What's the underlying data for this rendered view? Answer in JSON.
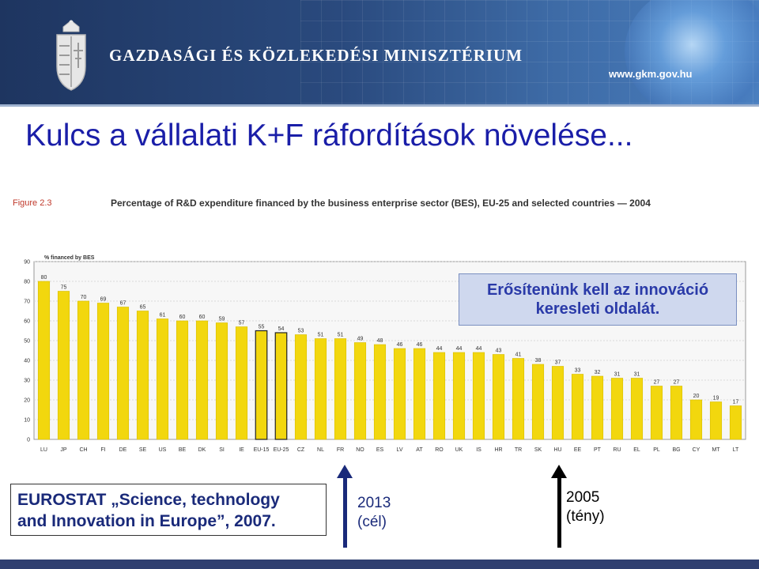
{
  "header": {
    "ministry_name": "GAZDASÁGI ÉS KÖZLEKEDÉSI MINISZTÉRIUM",
    "url": "www.gkm.gov.hu"
  },
  "slide": {
    "title": "Kulcs a vállalati K+F ráfordítások növelése..."
  },
  "figure": {
    "label": "Figure 2.3",
    "caption": "Percentage of R&D expenditure financed by the business enterprise sector (BES), EU-25 and selected countries — 2004"
  },
  "callout": {
    "line1": "Erősítenünk kell az innováció",
    "line2": "keresleti oldalát."
  },
  "source": {
    "line1": "EUROSTAT „Science, technology",
    "line2": "and Innovation in Europe”, 2007."
  },
  "markers": {
    "target_year": "2013",
    "target_note": "(cél)",
    "actual_year": "2005",
    "actual_note": "(tény)"
  },
  "colors": {
    "bar_fill": "#f2d70e",
    "bar_stroke": "#d8bd00",
    "eu_bar_stroke": "#222222",
    "title_color": "#1a1ea8"
  },
  "chart_data": {
    "type": "bar",
    "ylabel": "% financed by BES",
    "ylim": [
      0,
      90
    ],
    "yticks": [
      0,
      10,
      20,
      30,
      40,
      50,
      60,
      70,
      80,
      90
    ],
    "grid": true,
    "categories": [
      "LU",
      "JP",
      "CH",
      "FI",
      "DE",
      "SE",
      "US",
      "BE",
      "DK",
      "SI",
      "IE",
      "EU-15",
      "EU-25",
      "CZ",
      "NL",
      "FR",
      "NO",
      "ES",
      "LV",
      "AT",
      "RO",
      "UK",
      "IS",
      "HR",
      "TR",
      "SK",
      "HU",
      "EE",
      "PT",
      "RU",
      "EL",
      "PL",
      "BG",
      "CY",
      "MT",
      "LT"
    ],
    "values": [
      80,
      75,
      70,
      69,
      67,
      65,
      61,
      60,
      60,
      59,
      57,
      55,
      54,
      53,
      51,
      51,
      49,
      48,
      46,
      46,
      44,
      44,
      44,
      43,
      41,
      38,
      37,
      33,
      32,
      31,
      31,
      27,
      27,
      20,
      19,
      17
    ],
    "highlighted": [
      "EU-15",
      "EU-25"
    ]
  }
}
